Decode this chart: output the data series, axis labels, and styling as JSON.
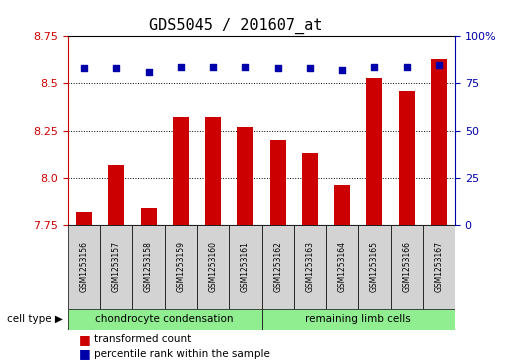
{
  "title": "GDS5045 / 201607_at",
  "samples": [
    "GSM1253156",
    "GSM1253157",
    "GSM1253158",
    "GSM1253159",
    "GSM1253160",
    "GSM1253161",
    "GSM1253162",
    "GSM1253163",
    "GSM1253164",
    "GSM1253165",
    "GSM1253166",
    "GSM1253167"
  ],
  "transformed_count": [
    7.82,
    8.07,
    7.84,
    8.32,
    8.32,
    8.27,
    8.2,
    8.13,
    7.96,
    8.53,
    8.46,
    8.63
  ],
  "percentile_rank": [
    83,
    83,
    81,
    84,
    84,
    84,
    83,
    83,
    82,
    84,
    84,
    85
  ],
  "cell_type_groups": [
    {
      "label": "chondrocyte condensation",
      "start": 0,
      "end": 5,
      "color": "#90ee90"
    },
    {
      "label": "remaining limb cells",
      "start": 6,
      "end": 11,
      "color": "#90ee90"
    }
  ],
  "ylim_left": [
    7.75,
    8.75
  ],
  "ylim_right": [
    0,
    100
  ],
  "yticks_left": [
    7.75,
    8.0,
    8.25,
    8.5,
    8.75
  ],
  "yticks_right": [
    0,
    25,
    50,
    75,
    100
  ],
  "bar_color": "#cc0000",
  "dot_color": "#0000aa",
  "bar_width": 0.5,
  "grid_color": "black",
  "sample_bg_color": "#d3d3d3",
  "legend_bar_label": "transformed count",
  "legend_dot_label": "percentile rank within the sample",
  "cell_type_label": "cell type",
  "title_fontsize": 11,
  "tick_fontsize": 8,
  "sample_fontsize": 5.5,
  "legend_fontsize": 7.5,
  "cell_type_fontsize": 7.5
}
